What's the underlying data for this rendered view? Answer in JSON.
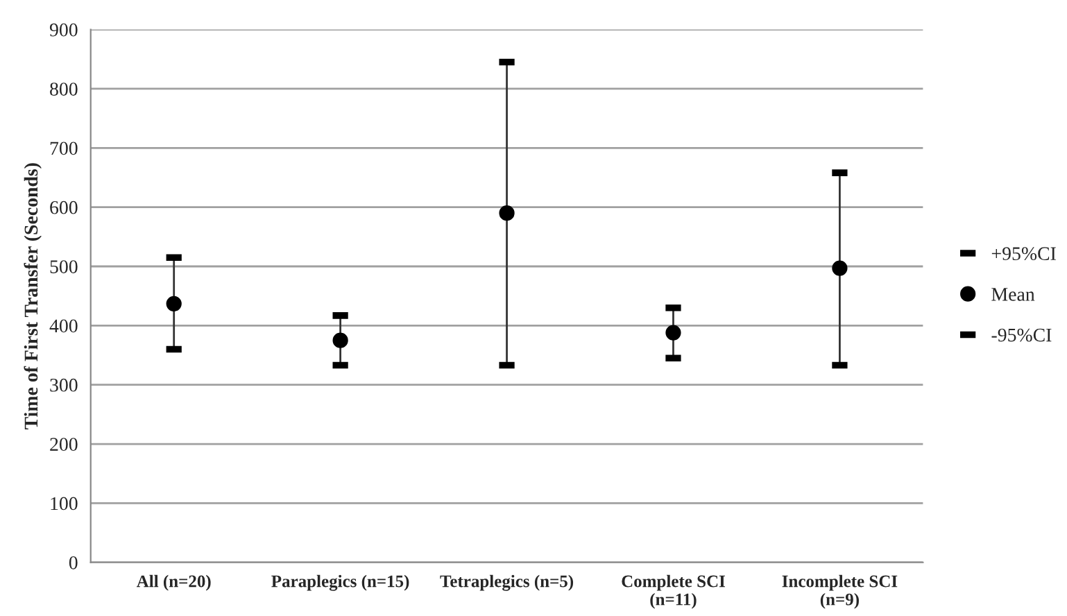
{
  "chart_data": {
    "type": "scatter",
    "ylabel": "Time of First Transfer (Seconds)",
    "categories": [
      "All (n=20)",
      "Paraplegics (n=15)",
      "Tetraplegics (n=5)",
      "Complete SCI\n(n=11)",
      "Incomplete SCI\n(n=9)"
    ],
    "series": [
      {
        "name": "+95%CI",
        "color": "#000000",
        "marker": "square",
        "values": [
          515,
          417,
          845,
          430,
          658
        ]
      },
      {
        "name": "Mean",
        "color": "#000000",
        "marker": "circle",
        "values": [
          437,
          375,
          590,
          388,
          497
        ]
      },
      {
        "name": "-95%CI",
        "color": "#000000",
        "marker": "square",
        "values": [
          360,
          333,
          333,
          345,
          333
        ]
      }
    ],
    "ylim": [
      0,
      900
    ],
    "yticks": [
      0,
      100,
      200,
      300,
      400,
      500,
      600,
      700,
      800,
      900
    ],
    "grid": "y",
    "legend": "right"
  }
}
